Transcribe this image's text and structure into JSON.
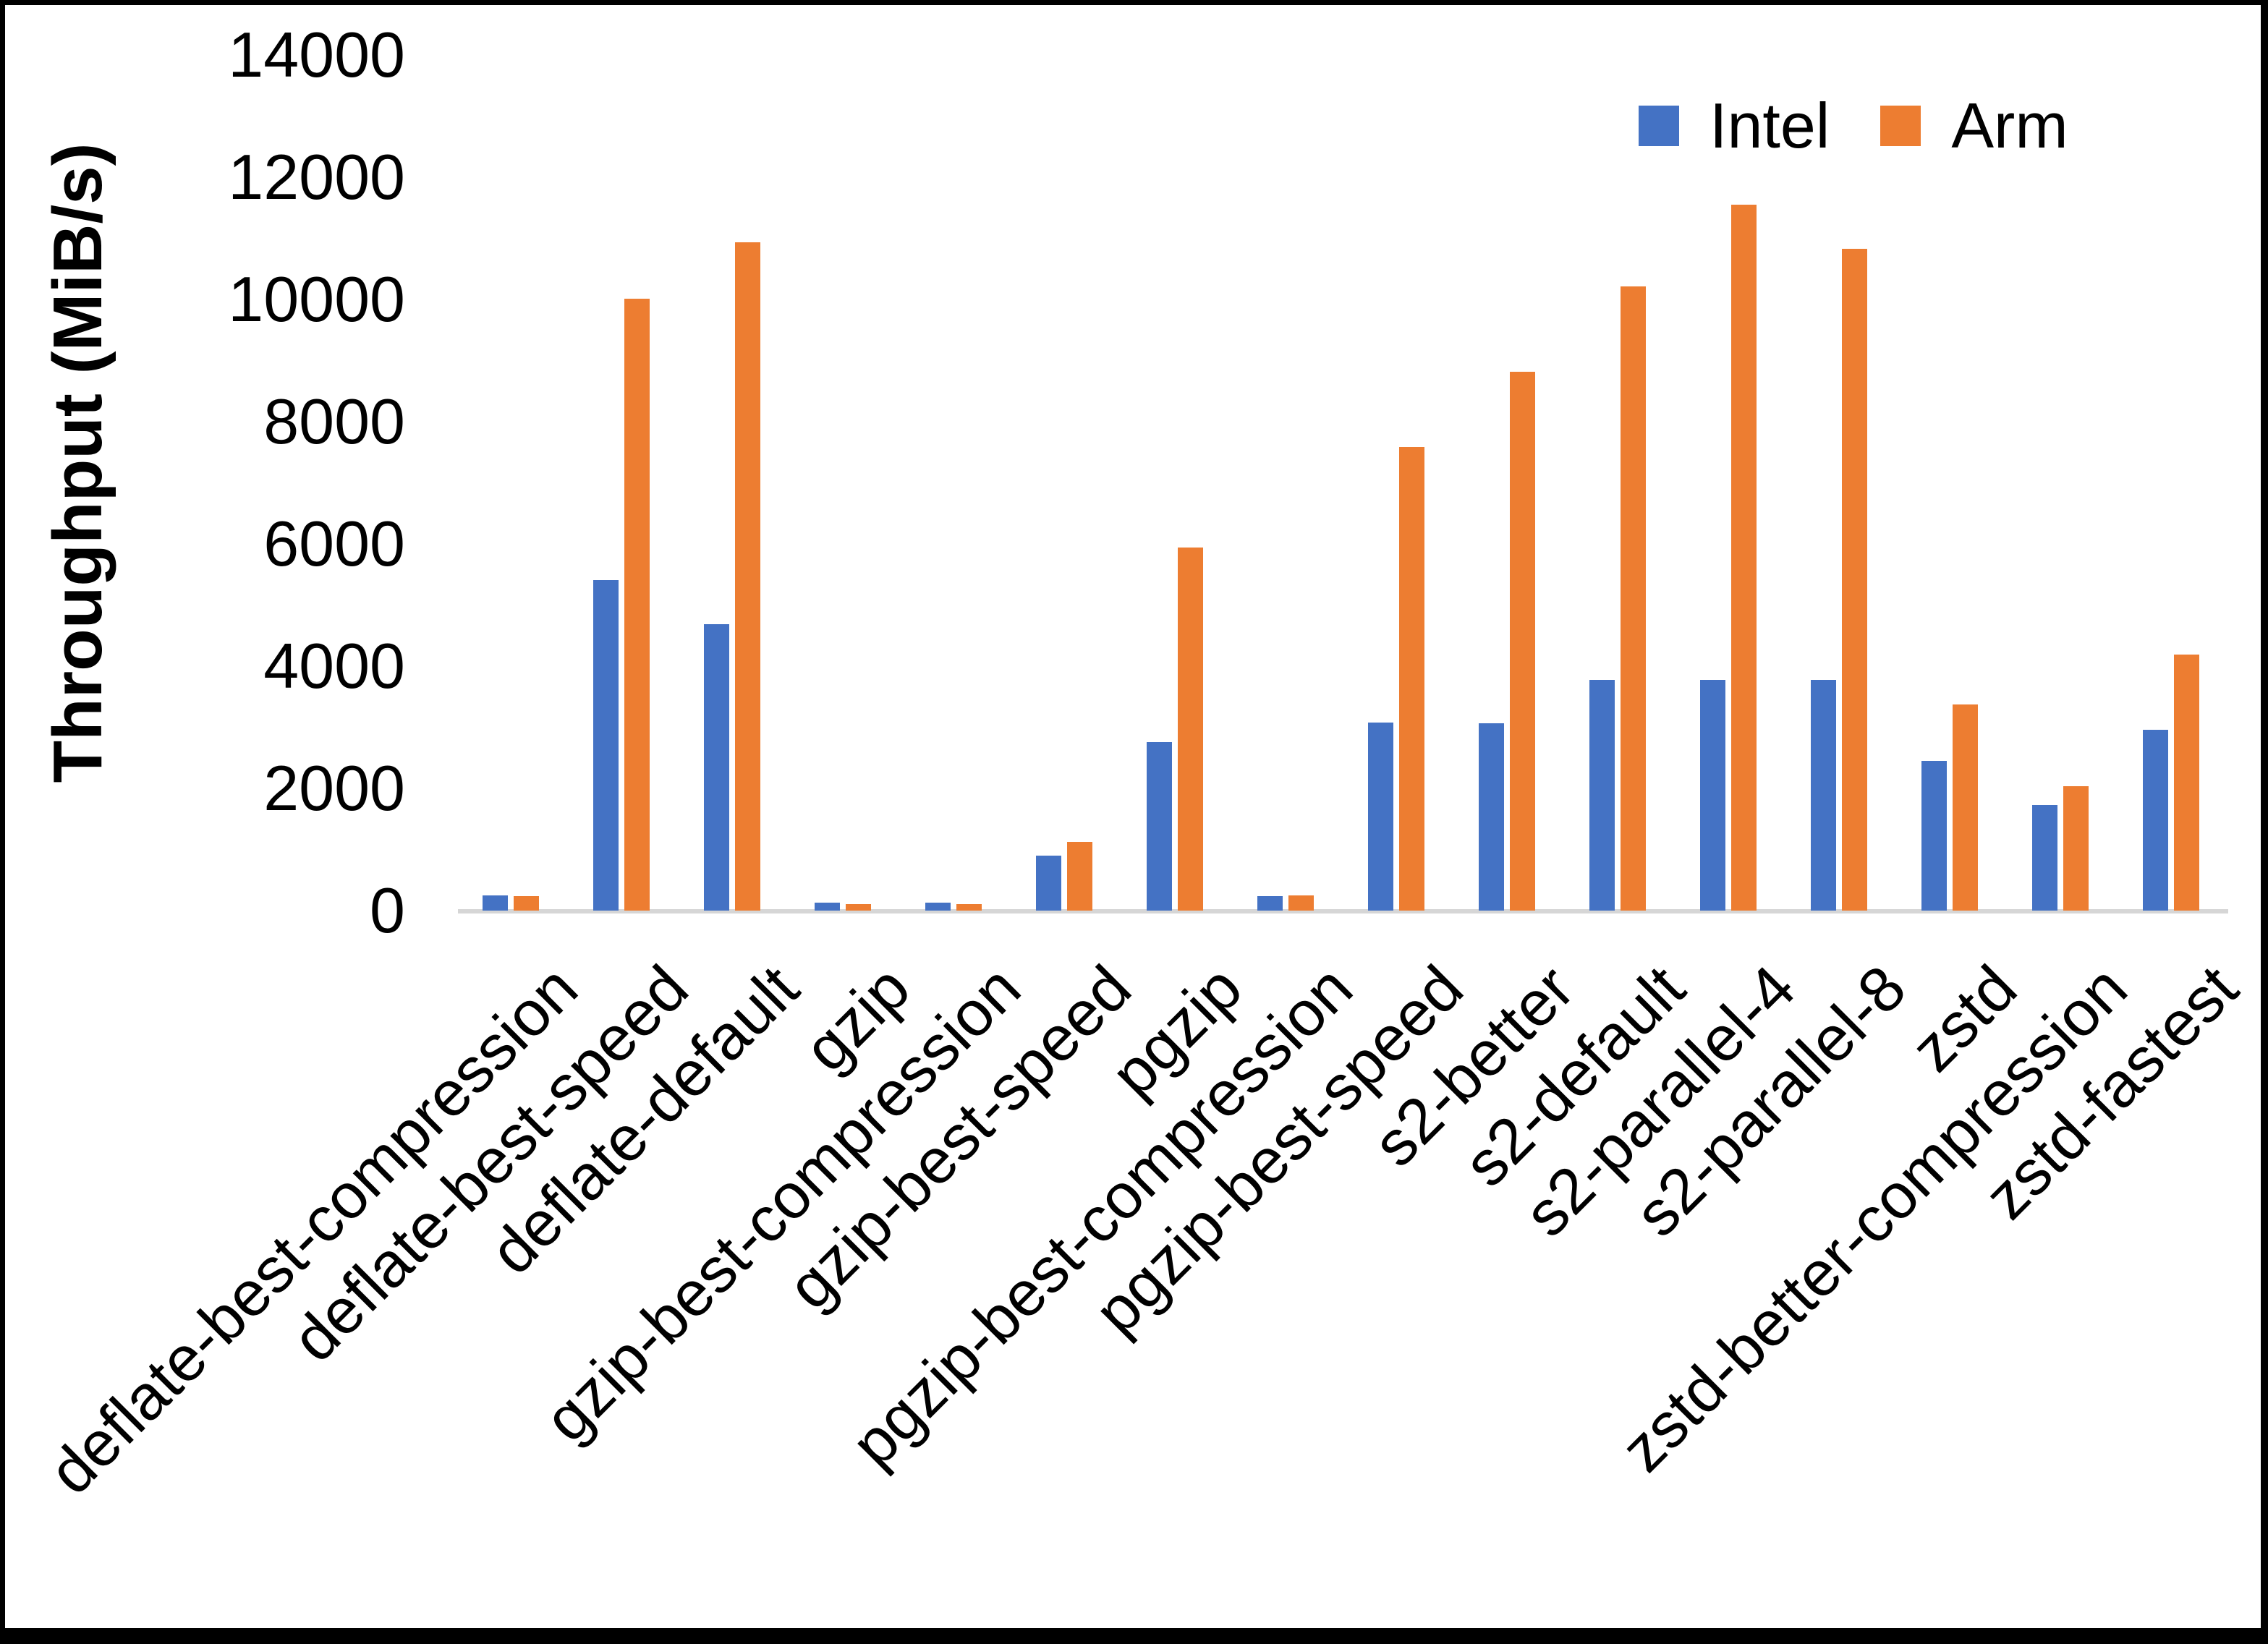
{
  "legend": {
    "intel": "Intel",
    "arm": "Arm"
  },
  "colors": {
    "intel": "#4472C4",
    "arm": "#ED7D31",
    "axis_line": "#D6D6D6",
    "text": "#000000",
    "background": "#FFFFFF",
    "frame": "#000000"
  },
  "chart_data": {
    "type": "bar",
    "title": "",
    "xlabel": "",
    "ylabel": "Throughput (MiB/s)",
    "ylim": [
      0,
      14000
    ],
    "y_ticks": [
      0,
      2000,
      4000,
      6000,
      8000,
      10000,
      12000,
      14000
    ],
    "grid": false,
    "legend_position": "top-right",
    "categories": [
      "deflate-best-compression",
      "deflate-best-speed",
      "deflate-default",
      "gzip",
      "gzip-best-compression",
      "gzip-best-speed",
      "pgzip",
      "pgzip-best-compression",
      "pgzip-best-speed",
      "s2-better",
      "s2-default",
      "s2-parallel-4",
      "s2-parallel-8",
      "zstd",
      "zstd-better-compression",
      "zstd-fastest"
    ],
    "series": [
      {
        "name": "Intel",
        "color": "#4472C4",
        "values": [
          245,
          5410,
          4690,
          130,
          130,
          895,
          2760,
          235,
          3075,
          3070,
          3775,
          3775,
          3775,
          2450,
          1725,
          2955
        ]
      },
      {
        "name": "Arm",
        "color": "#ED7D31",
        "values": [
          240,
          10010,
          10940,
          105,
          105,
          1120,
          5940,
          250,
          7590,
          8815,
          10215,
          11550,
          10830,
          3370,
          2030,
          4190
        ]
      }
    ]
  }
}
